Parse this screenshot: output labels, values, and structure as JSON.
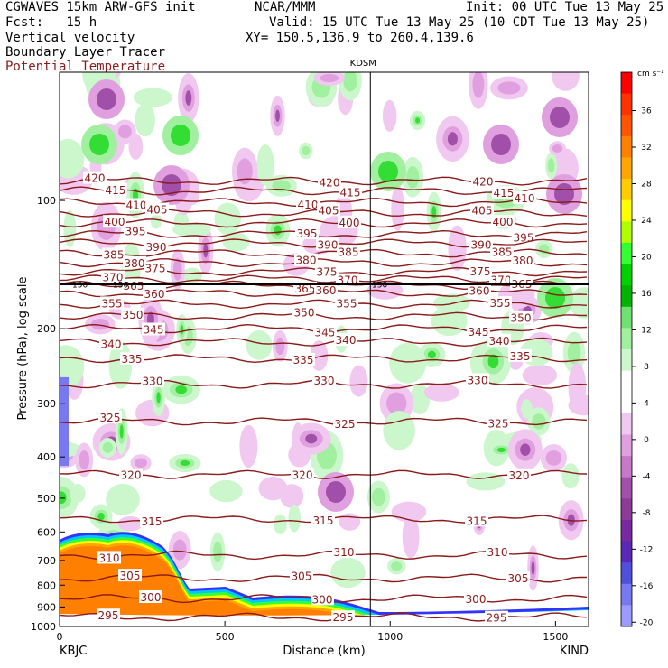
{
  "header": {
    "line1_left": "CGWAVES 15km ARW-GFS init",
    "line1_mid": "NCAR/MMM",
    "line1_right": "Init: 00 UTC Tue 13 May 25",
    "line2_left": "Fcst:   15 h",
    "line2_right": "Valid: 15 UTC Tue 13 May 25 (10 CDT Tue 13 May 25)",
    "line3_left": "Vertical velocity",
    "line3_right": "XY= 150.5,136.9 to 260.4,139.6",
    "line4_left": "Boundary Layer Tracer",
    "line5_left": "Potential Temperature",
    "line5_color": "#8b1a1a"
  },
  "chart_data": {
    "type": "heatmap",
    "title": "",
    "xlabel": "Distance (km)",
    "ylabel": "Pressure (hPa), log scale",
    "x_ticks": [
      "0",
      "500",
      "1000",
      "1500"
    ],
    "y_ticks": [
      "100",
      "200",
      "300",
      "400",
      "500",
      "600",
      "700",
      "800",
      "900",
      "1000"
    ],
    "xlim": [
      0,
      1600
    ],
    "ylim_hpa": [
      1000,
      50
    ],
    "station_left": "KBJC",
    "station_right": "KIND",
    "station_mid": "KDSM",
    "station_mid_km": 940,
    "colorbar": {
      "units": "cm s⁻¹",
      "ticks": [
        "36",
        "32",
        "28",
        "24",
        "20",
        "16",
        "12",
        "8",
        "4",
        "0",
        "-4",
        "-8",
        "-12",
        "-16",
        "-20"
      ],
      "colors": [
        "#ff0000",
        "#ff3300",
        "#ff5500",
        "#ff8000",
        "#ffa500",
        "#ffcc00",
        "#ffff00",
        "#b0ff00",
        "#33ff33",
        "#00d200",
        "#00b400",
        "#70e070",
        "#a0f0a0",
        "#ccf7cc",
        "#ffffff",
        "#ffffff",
        "#f0c8f0",
        "#e0a0e0",
        "#c878c8",
        "#a050a8",
        "#8c3c96",
        "#7828a0",
        "#5a28b4",
        "#5050dc",
        "#7878f0",
        "#9a9aff"
      ]
    },
    "theta_contours": [
      {
        "value": 420,
        "p": 90
      },
      {
        "value": 415,
        "p": 95
      },
      {
        "value": 410,
        "p": 101
      },
      {
        "value": 405,
        "p": 107
      },
      {
        "value": 400,
        "p": 113
      },
      {
        "value": 395,
        "p": 120
      },
      {
        "value": 390,
        "p": 126
      },
      {
        "value": 385,
        "p": 133
      },
      {
        "value": 380,
        "p": 140
      },
      {
        "value": 375,
        "p": 147
      },
      {
        "value": 370,
        "p": 153
      },
      {
        "value": 365,
        "p": 158
      },
      {
        "value": 360,
        "p": 165
      },
      {
        "value": 355,
        "p": 175
      },
      {
        "value": 350,
        "p": 187
      },
      {
        "value": 345,
        "p": 200
      },
      {
        "value": 340,
        "p": 215
      },
      {
        "value": 335,
        "p": 235
      },
      {
        "value": 330,
        "p": 270
      },
      {
        "value": 325,
        "p": 330
      },
      {
        "value": 320,
        "p": 440
      },
      {
        "value": 315,
        "p": 560
      },
      {
        "value": 310,
        "p": 680
      },
      {
        "value": 305,
        "p": 770
      },
      {
        "value": 300,
        "p": 860
      },
      {
        "value": 295,
        "p": 950
      }
    ],
    "tropopause_p": 157,
    "tropopause_labels": [
      "150",
      "150",
      "150"
    ]
  }
}
